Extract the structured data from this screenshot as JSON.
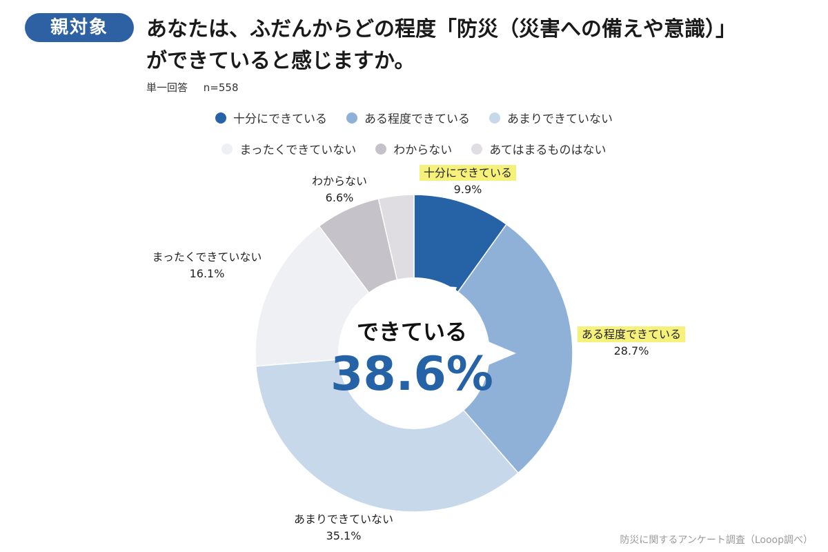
{
  "header": {
    "badge": "親対象",
    "title_line1": "あなたは、ふだんからどの程度「防災（災害への備えや意識）」",
    "title_line2": "ができていると感じますか。",
    "answer_type": "単一回答",
    "sample": "n=558"
  },
  "colors": {
    "brand": "#2d61a3",
    "highlight": "#f6f17a"
  },
  "chart_data": {
    "type": "pie",
    "categories": [
      "十分にできている",
      "ある程度できている",
      "あまりできていない",
      "まったくできていない",
      "わからない",
      "あてはまるものはない"
    ],
    "values": [
      9.9,
      28.7,
      35.1,
      16.1,
      6.6,
      3.6
    ],
    "value_labels": [
      "9.9%",
      "28.7%",
      "35.1%",
      "16.1%",
      "6.6%",
      ""
    ],
    "colors": [
      "#2563a6",
      "#8fb1d8",
      "#c6d8ea",
      "#eef0f4",
      "#c6c2c9",
      "#e0dde2"
    ],
    "highlighted": [
      "十分にできている",
      "ある程度できている"
    ],
    "legend_placement": "top",
    "center": {
      "caption": "できている",
      "value": "38.6%"
    }
  },
  "footer": {
    "source": "防災に関するアンケート調査（Looop調べ）"
  }
}
